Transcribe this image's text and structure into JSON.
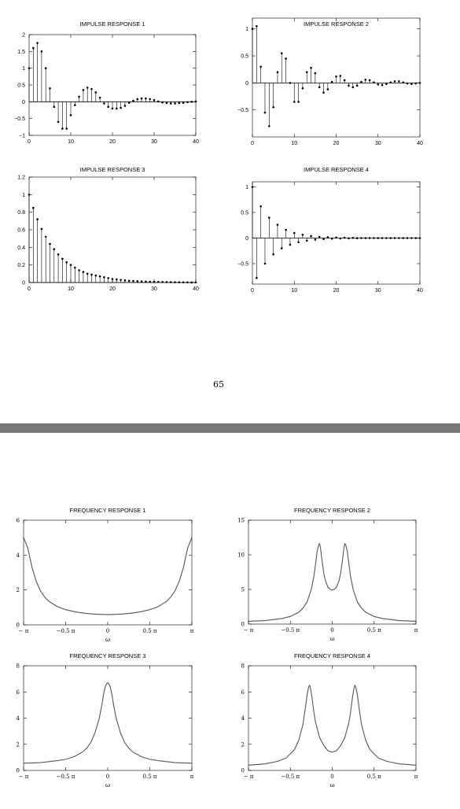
{
  "page_number": "65",
  "colors": {
    "ink": "#000000",
    "curve": "#555555",
    "separator": "#777777",
    "background": "#ffffff"
  },
  "chart_data": [
    {
      "type": "stem",
      "title": "IMPULSE RESPONSE 1",
      "xlim": [
        0,
        40
      ],
      "ylim": [
        -1,
        2
      ],
      "xticks": [
        0,
        10,
        20,
        30,
        40
      ],
      "yticks": [
        -1,
        -0.5,
        0,
        0.5,
        1,
        1.5,
        2
      ],
      "ytick_labels": [
        "−1",
        "−0.5",
        "0",
        "0.5",
        "1",
        "1.5",
        "2"
      ],
      "x": [
        0,
        1,
        2,
        3,
        4,
        5,
        6,
        7,
        8,
        9,
        10,
        11,
        12,
        13,
        14,
        15,
        16,
        17,
        18,
        19,
        20,
        21,
        22,
        23,
        24,
        25,
        26,
        27,
        28,
        29,
        30,
        31,
        32,
        33,
        34,
        35,
        36,
        37,
        38,
        39,
        40
      ],
      "values": [
        1.0,
        1.6,
        1.75,
        1.5,
        1.0,
        0.4,
        -0.15,
        -0.6,
        -0.8,
        -0.8,
        -0.4,
        -0.1,
        0.15,
        0.35,
        0.42,
        0.38,
        0.28,
        0.12,
        -0.05,
        -0.15,
        -0.2,
        -0.2,
        -0.18,
        -0.12,
        -0.03,
        0.03,
        0.08,
        0.1,
        0.1,
        0.08,
        0.05,
        0.01,
        -0.02,
        -0.04,
        -0.05,
        -0.05,
        -0.04,
        -0.03,
        -0.01,
        0.0,
        0.01
      ]
    },
    {
      "type": "stem",
      "title": "IMPULSE RESPONSE 2",
      "xlim": [
        0,
        40
      ],
      "ylim": [
        -1,
        1.2
      ],
      "xticks": [
        0,
        10,
        20,
        30,
        40
      ],
      "yticks": [
        -0.5,
        0,
        0.5,
        1
      ],
      "ytick_labels": [
        "−0.5",
        "0",
        "0.5",
        "1"
      ],
      "x": [
        0,
        1,
        2,
        3,
        4,
        5,
        6,
        7,
        8,
        9,
        10,
        11,
        12,
        13,
        14,
        15,
        16,
        17,
        18,
        19,
        20,
        21,
        22,
        23,
        24,
        25,
        26,
        27,
        28,
        29,
        30,
        31,
        32,
        33,
        34,
        35,
        36,
        37,
        38,
        39,
        40
      ],
      "values": [
        1.0,
        1.05,
        0.3,
        -0.55,
        -0.8,
        -0.45,
        0.2,
        0.55,
        0.45,
        0.0,
        -0.35,
        -0.35,
        -0.1,
        0.2,
        0.28,
        0.18,
        -0.08,
        -0.18,
        -0.12,
        0.02,
        0.12,
        0.13,
        0.05,
        -0.05,
        -0.08,
        -0.05,
        0.02,
        0.06,
        0.05,
        0.01,
        -0.03,
        -0.04,
        -0.02,
        0.01,
        0.03,
        0.03,
        0.01,
        -0.01,
        -0.02,
        -0.01,
        0.0
      ]
    },
    {
      "type": "stem",
      "title": "IMPULSE RESPONSE 3",
      "xlim": [
        0,
        40
      ],
      "ylim": [
        0,
        1.2
      ],
      "xticks": [
        0,
        10,
        20,
        30,
        40
      ],
      "yticks": [
        0,
        0.2,
        0.4,
        0.6,
        0.8,
        1,
        1.2
      ],
      "ytick_labels": [
        "0",
        "0.2",
        "0.4",
        "0.6",
        "0.8",
        "1",
        "1.2"
      ],
      "x": [
        0,
        1,
        2,
        3,
        4,
        5,
        6,
        7,
        8,
        9,
        10,
        11,
        12,
        13,
        14,
        15,
        16,
        17,
        18,
        19,
        20,
        21,
        22,
        23,
        24,
        25,
        26,
        27,
        28,
        29,
        30,
        31,
        32,
        33,
        34,
        35,
        36,
        37,
        38,
        39,
        40
      ],
      "values": [
        1.0,
        0.85,
        0.72,
        0.61,
        0.52,
        0.44,
        0.38,
        0.32,
        0.27,
        0.23,
        0.2,
        0.17,
        0.14,
        0.12,
        0.1,
        0.09,
        0.08,
        0.07,
        0.06,
        0.05,
        0.04,
        0.035,
        0.03,
        0.025,
        0.02,
        0.018,
        0.015,
        0.013,
        0.011,
        0.009,
        0.008,
        0.007,
        0.006,
        0.005,
        0.004,
        0.003,
        0.003,
        0.002,
        0.002,
        0.001,
        0.001
      ]
    },
    {
      "type": "stem",
      "title": "IMPULSE RESPONSE 4",
      "xlim": [
        0,
        40
      ],
      "ylim": [
        -0.9,
        1.1
      ],
      "xticks": [
        0,
        10,
        20,
        30,
        40
      ],
      "yticks": [
        -0.5,
        0,
        0.5,
        1
      ],
      "ytick_labels": [
        "−0.5",
        "0",
        "0.5",
        "1"
      ],
      "x": [
        0,
        1,
        2,
        3,
        4,
        5,
        6,
        7,
        8,
        9,
        10,
        11,
        12,
        13,
        14,
        15,
        16,
        17,
        18,
        19,
        20,
        21,
        22,
        23,
        24,
        25,
        26,
        27,
        28,
        29,
        30,
        31,
        32,
        33,
        34,
        35,
        36,
        37,
        38,
        39,
        40
      ],
      "values": [
        1.0,
        -0.78,
        0.62,
        -0.5,
        0.4,
        -0.32,
        0.26,
        -0.2,
        0.16,
        -0.13,
        0.1,
        -0.08,
        0.065,
        -0.05,
        0.04,
        -0.03,
        0.025,
        -0.02,
        0.016,
        -0.012,
        0.01,
        -0.008,
        0.006,
        -0.005,
        0.004,
        -0.003,
        0.0,
        0.0,
        0.0,
        0.0,
        0.0,
        0.0,
        0.0,
        0.0,
        0.0,
        0.0,
        0.0,
        0.0,
        0.0,
        0.0,
        0.0
      ]
    },
    {
      "type": "line",
      "title": "FREQUENCY RESPONSE 1",
      "xlabel": "ω",
      "xlim": [
        -1,
        1
      ],
      "ylim": [
        0,
        6
      ],
      "xticks": [
        -1,
        -0.5,
        0,
        0.5,
        1
      ],
      "xtick_labels": [
        "− π",
        "−0.5 π",
        "0",
        "0.5 π",
        "π"
      ],
      "yticks": [
        0,
        2,
        4,
        6
      ],
      "ytick_labels": [
        "0",
        "2",
        "4",
        "6"
      ],
      "x_unit": "π",
      "x": [
        -1,
        -0.95,
        -0.9,
        -0.85,
        -0.8,
        -0.75,
        -0.7,
        -0.6,
        -0.5,
        -0.4,
        -0.3,
        -0.2,
        -0.1,
        0,
        0.1,
        0.2,
        0.3,
        0.4,
        0.5,
        0.6,
        0.7,
        0.75,
        0.8,
        0.85,
        0.9,
        0.95,
        1
      ],
      "y": [
        5.0,
        4.4,
        3.3,
        2.5,
        1.95,
        1.6,
        1.35,
        1.05,
        0.87,
        0.76,
        0.68,
        0.63,
        0.6,
        0.59,
        0.6,
        0.63,
        0.68,
        0.76,
        0.87,
        1.05,
        1.35,
        1.6,
        1.95,
        2.5,
        3.3,
        4.4,
        5.0
      ]
    },
    {
      "type": "line",
      "title": "FREQUENCY RESPONSE 2",
      "xlabel": "ω",
      "xlim": [
        -1,
        1
      ],
      "ylim": [
        0,
        15
      ],
      "xticks": [
        -1,
        -0.5,
        0,
        0.5,
        1
      ],
      "xtick_labels": [
        "− π",
        "−0.5 π",
        "0",
        "0.5 π",
        "π"
      ],
      "yticks": [
        0,
        5,
        10,
        15
      ],
      "ytick_labels": [
        "0",
        "5",
        "10",
        "15"
      ],
      "x_unit": "π",
      "x": [
        -1,
        -0.8,
        -0.6,
        -0.5,
        -0.4,
        -0.35,
        -0.3,
        -0.25,
        -0.22,
        -0.2,
        -0.18,
        -0.16,
        -0.15,
        -0.14,
        -0.12,
        -0.1,
        -0.08,
        -0.05,
        -0.02,
        0,
        0.02,
        0.05,
        0.08,
        0.1,
        0.12,
        0.14,
        0.15,
        0.16,
        0.18,
        0.2,
        0.22,
        0.25,
        0.3,
        0.35,
        0.4,
        0.5,
        0.6,
        0.8,
        1
      ],
      "y": [
        0.4,
        0.5,
        0.8,
        1.1,
        1.7,
        2.3,
        3.2,
        5.0,
        6.8,
        8.6,
        10.5,
        11.5,
        11.6,
        11.0,
        9.0,
        7.3,
        6.2,
        5.3,
        5.0,
        4.9,
        5.0,
        5.3,
        6.2,
        7.3,
        9.0,
        11.0,
        11.6,
        11.5,
        10.5,
        8.6,
        6.8,
        5.0,
        3.2,
        2.3,
        1.7,
        1.1,
        0.8,
        0.5,
        0.4
      ]
    },
    {
      "type": "line",
      "title": "FREQUENCY RESPONSE 3",
      "xlabel": "ω",
      "xlim": [
        -1,
        1
      ],
      "ylim": [
        0,
        8
      ],
      "xticks": [
        -1,
        -0.5,
        0,
        0.5,
        1
      ],
      "xtick_labels": [
        "− π",
        "−0.5 π",
        "0",
        "0.5 π",
        "π"
      ],
      "yticks": [
        0,
        2,
        4,
        6,
        8
      ],
      "ytick_labels": [
        "0",
        "2",
        "4",
        "6",
        "8"
      ],
      "x_unit": "π",
      "x": [
        -1,
        -0.8,
        -0.6,
        -0.5,
        -0.4,
        -0.3,
        -0.25,
        -0.2,
        -0.15,
        -0.1,
        -0.07,
        -0.05,
        -0.03,
        -0.01,
        0,
        0.01,
        0.03,
        0.05,
        0.07,
        0.1,
        0.15,
        0.2,
        0.25,
        0.3,
        0.4,
        0.5,
        0.6,
        0.8,
        1
      ],
      "y": [
        0.55,
        0.6,
        0.75,
        0.85,
        1.05,
        1.4,
        1.7,
        2.15,
        2.9,
        4.0,
        5.0,
        5.8,
        6.4,
        6.65,
        6.7,
        6.65,
        6.4,
        5.8,
        5.0,
        4.0,
        2.9,
        2.15,
        1.7,
        1.4,
        1.05,
        0.85,
        0.75,
        0.6,
        0.55
      ]
    },
    {
      "type": "line",
      "title": "FREQUENCY RESPONSE 4",
      "xlabel": "ω",
      "xlim": [
        -1,
        1
      ],
      "ylim": [
        0,
        8
      ],
      "xticks": [
        -1,
        -0.5,
        0,
        0.5,
        1
      ],
      "xtick_labels": [
        "− π",
        "−0.5 π",
        "0",
        "0.5 π",
        "π"
      ],
      "yticks": [
        0,
        2,
        4,
        6,
        8
      ],
      "ytick_labels": [
        "0",
        "2",
        "4",
        "6",
        "8"
      ],
      "x_unit": "π",
      "x": [
        -1,
        -0.8,
        -0.65,
        -0.55,
        -0.45,
        -0.4,
        -0.35,
        -0.32,
        -0.3,
        -0.28,
        -0.27,
        -0.26,
        -0.24,
        -0.22,
        -0.2,
        -0.15,
        -0.1,
        -0.05,
        0,
        0.05,
        0.1,
        0.15,
        0.2,
        0.22,
        0.24,
        0.26,
        0.27,
        0.28,
        0.3,
        0.32,
        0.35,
        0.4,
        0.45,
        0.55,
        0.65,
        0.8,
        1
      ],
      "y": [
        0.4,
        0.5,
        0.7,
        0.95,
        1.6,
        2.3,
        3.5,
        4.8,
        5.8,
        6.4,
        6.5,
        6.3,
        5.5,
        4.5,
        3.7,
        2.5,
        1.9,
        1.5,
        1.4,
        1.5,
        1.9,
        2.5,
        3.7,
        4.5,
        5.5,
        6.3,
        6.5,
        6.4,
        5.8,
        4.8,
        3.5,
        2.3,
        1.6,
        0.95,
        0.7,
        0.5,
        0.4
      ]
    }
  ]
}
